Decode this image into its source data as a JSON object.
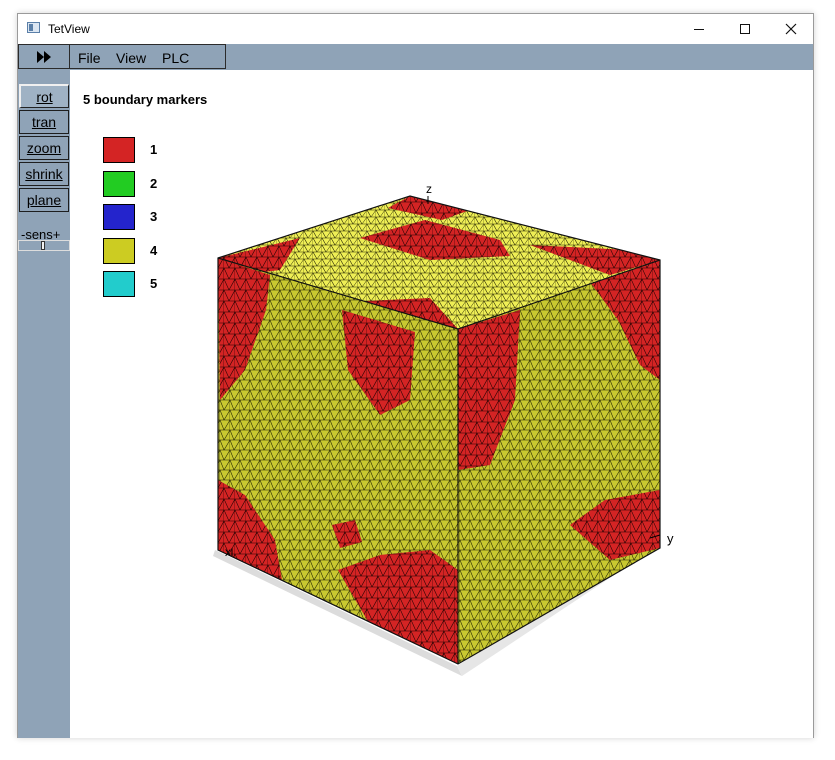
{
  "window": {
    "title": "TetView"
  },
  "menu": {
    "items": [
      {
        "label": "File"
      },
      {
        "label": "View"
      },
      {
        "label": "PLC"
      }
    ]
  },
  "sidebar": {
    "buttons": [
      {
        "label": "rot",
        "active": true
      },
      {
        "label": "tran",
        "active": false
      },
      {
        "label": "zoom",
        "active": false
      },
      {
        "label": "shrink",
        "active": false
      },
      {
        "label": "plane",
        "active": false
      }
    ],
    "sens_label": "-sens+"
  },
  "legend": {
    "title": "5 boundary markers",
    "items": [
      {
        "label": "1",
        "color": "#d42424"
      },
      {
        "label": "2",
        "color": "#22cc22"
      },
      {
        "label": "3",
        "color": "#2424cc"
      },
      {
        "label": "4",
        "color": "#cccc22"
      },
      {
        "label": "5",
        "color": "#22cccc"
      }
    ]
  },
  "axes": {
    "x": "x",
    "y": "y",
    "z": "z"
  },
  "colors": {
    "toolbar_bg": "#8fa3b7",
    "marker_red": "#d42424",
    "marker_yellow": "#cccc22",
    "marker_yellow_light": "#eeee55"
  }
}
